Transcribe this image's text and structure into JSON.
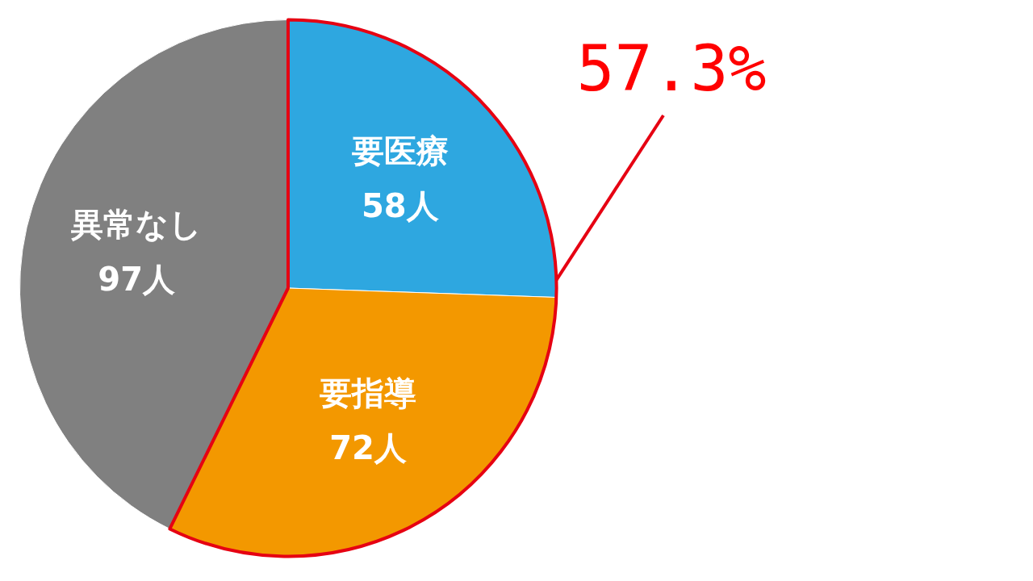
{
  "chart_data": {
    "type": "pie",
    "categories": [
      "要医療",
      "要指導",
      "異常なし"
    ],
    "values": [
      58,
      72,
      97
    ],
    "value_labels": [
      "58人",
      "72人",
      "97人"
    ],
    "colors": [
      "#2ea7e0",
      "#f39800",
      "#808080"
    ],
    "annotations": [
      "57.3%"
    ],
    "legend": false
  }
}
